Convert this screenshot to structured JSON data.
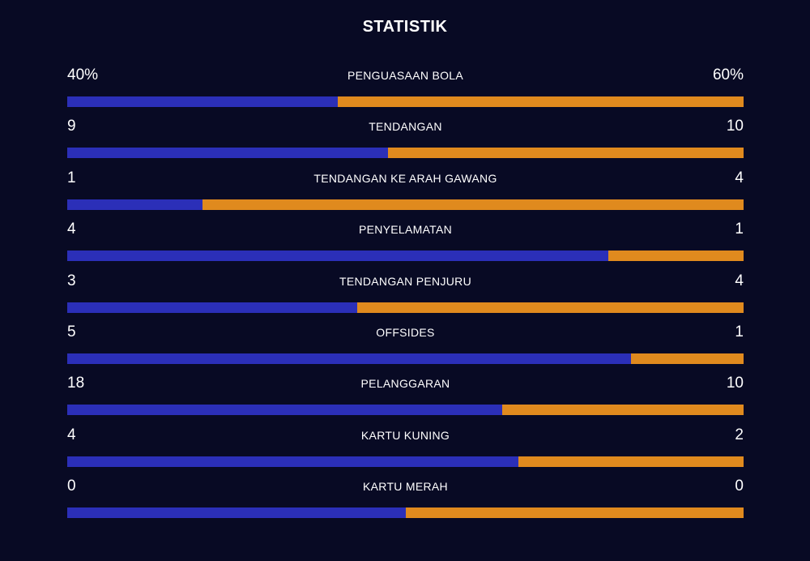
{
  "title": "STATISTIK",
  "colors": {
    "home": "#2b2fb8",
    "away": "#e08a1e",
    "background": "#080a24"
  },
  "stats": [
    {
      "label": "PENGUASAAN BOLA",
      "home": "40%",
      "away": "60%",
      "home_share": 0.4
    },
    {
      "label": "TENDANGAN",
      "home": "9",
      "away": "10",
      "home_share": 0.4737
    },
    {
      "label": "TENDANGAN KE ARAH GAWANG",
      "home": "1",
      "away": "4",
      "home_share": 0.2
    },
    {
      "label": "PENYELAMATAN",
      "home": "4",
      "away": "1",
      "home_share": 0.8
    },
    {
      "label": "TENDANGAN PENJURU",
      "home": "3",
      "away": "4",
      "home_share": 0.4286
    },
    {
      "label": "OFFSIDES",
      "home": "5",
      "away": "1",
      "home_share": 0.8333
    },
    {
      "label": "PELANGGARAN",
      "home": "18",
      "away": "10",
      "home_share": 0.6429
    },
    {
      "label": "KARTU KUNING",
      "home": "4",
      "away": "2",
      "home_share": 0.6667
    },
    {
      "label": "KARTU MERAH",
      "home": "0",
      "away": "0",
      "home_share": 0.5
    }
  ]
}
